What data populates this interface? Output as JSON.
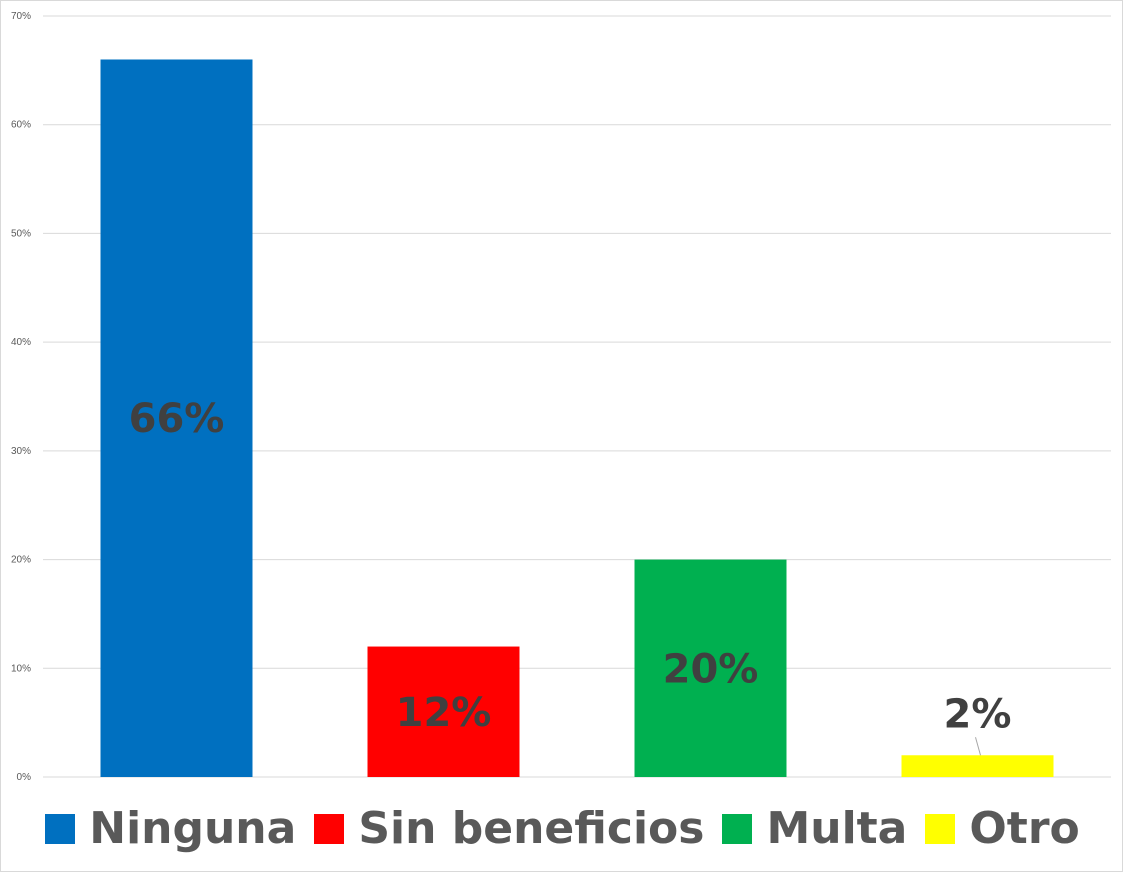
{
  "chart_data": {
    "type": "bar",
    "categories": [
      "Ninguna",
      "Sin beneficios",
      "Multa",
      "Otro"
    ],
    "values": [
      66,
      12,
      20,
      2
    ],
    "value_labels": [
      "66%",
      "12%",
      "20%",
      "2%"
    ],
    "colors": [
      "#0070C0",
      "#FF0000",
      "#00B050",
      "#FFFF00"
    ],
    "ylim": [
      0,
      70
    ],
    "yticks": [
      0,
      10,
      20,
      30,
      40,
      50,
      60,
      70
    ],
    "ytick_labels": [
      "0%",
      "10%",
      "20%",
      "30%",
      "40%",
      "50%",
      "60%",
      "70%"
    ],
    "grid": true,
    "legend_position": "bottom",
    "title": "",
    "xlabel": "",
    "ylabel": ""
  }
}
